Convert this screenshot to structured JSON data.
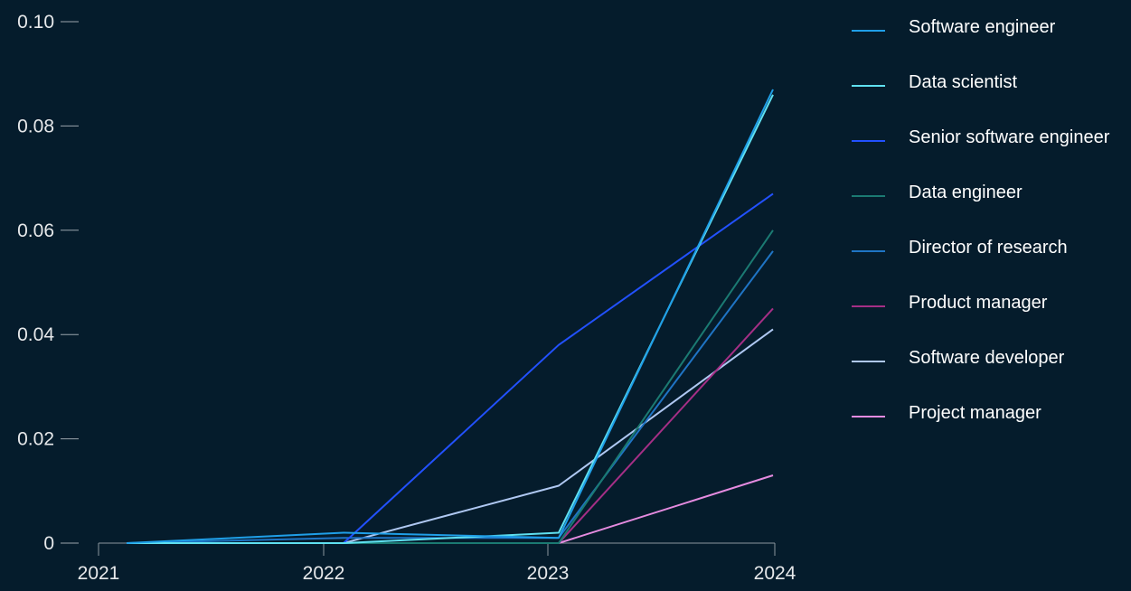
{
  "chart_data": {
    "type": "line",
    "title": "",
    "xlabel": "",
    "ylabel": "",
    "x": [
      "2021",
      "2022",
      "2023",
      "2024"
    ],
    "ylim": [
      0,
      0.1
    ],
    "yticks": [
      {
        "value": 0,
        "label": "0"
      },
      {
        "value": 0.02,
        "label": "0.02"
      },
      {
        "value": 0.04,
        "label": "0.04"
      },
      {
        "value": 0.06,
        "label": "0.06"
      },
      {
        "value": 0.08,
        "label": "0.08"
      },
      {
        "value": 0.1,
        "label": "0.10"
      }
    ],
    "grid": false,
    "legend_position": "right",
    "series": [
      {
        "name": "Software engineer",
        "color": "#1F9FE8",
        "values": [
          0,
          0.002,
          0.001,
          0.087
        ]
      },
      {
        "name": "Data scientist",
        "color": "#5FE0F0",
        "values": [
          0,
          0,
          0.002,
          0.086
        ]
      },
      {
        "name": "Senior software engineer",
        "color": "#2251FF",
        "values": [
          0,
          0,
          0.038,
          0.067
        ]
      },
      {
        "name": "Data engineer",
        "color": "#1B7A72",
        "values": [
          0,
          0,
          0,
          0.06
        ]
      },
      {
        "name": "Director of research",
        "color": "#1F74C4",
        "values": [
          0,
          0.001,
          0.001,
          0.056
        ]
      },
      {
        "name": "Product manager",
        "color": "#A52F86",
        "values": [
          0,
          0,
          0,
          0.045
        ]
      },
      {
        "name": "Software developer",
        "color": "#AFC8F2",
        "values": [
          0,
          0,
          0.011,
          0.041
        ]
      },
      {
        "name": "Project manager",
        "color": "#E58BE0",
        "values": [
          0,
          0,
          0,
          0.013
        ]
      }
    ]
  }
}
